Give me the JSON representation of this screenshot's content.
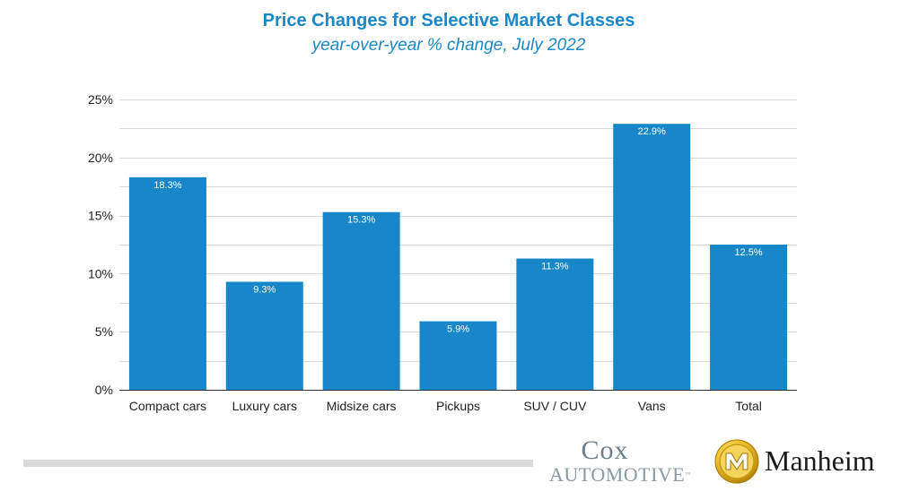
{
  "chart_data": {
    "type": "bar",
    "title": "Price Changes for Selective Market Classes",
    "subtitle": "year-over-year % change, July 2022",
    "categories": [
      "Compact cars",
      "Luxury cars",
      "Midsize cars",
      "Pickups",
      "SUV / CUV",
      "Vans",
      "Total"
    ],
    "values": [
      18.3,
      9.3,
      15.3,
      5.9,
      11.3,
      22.9,
      12.5
    ],
    "data_labels": [
      "18.3%",
      "9.3%",
      "15.3%",
      "5.9%",
      "11.3%",
      "22.9%",
      "12.5%"
    ],
    "yticks": [
      0,
      5,
      10,
      15,
      20,
      25
    ],
    "ytick_labels": [
      "0%",
      "5%",
      "10%",
      "15%",
      "20%",
      "25%"
    ],
    "ylim": [
      0,
      25
    ],
    "xlabel": "",
    "ylabel": "",
    "grid": true,
    "colors": {
      "bar": "#1787c9",
      "grid": "#d9d9d9",
      "axis": "#333333",
      "title": "#1b87c9"
    }
  },
  "logos": {
    "cox_top": "Cox",
    "cox_bottom": "AUTOMOTIVE",
    "cox_tm": "™",
    "manheim": "Manheim"
  }
}
